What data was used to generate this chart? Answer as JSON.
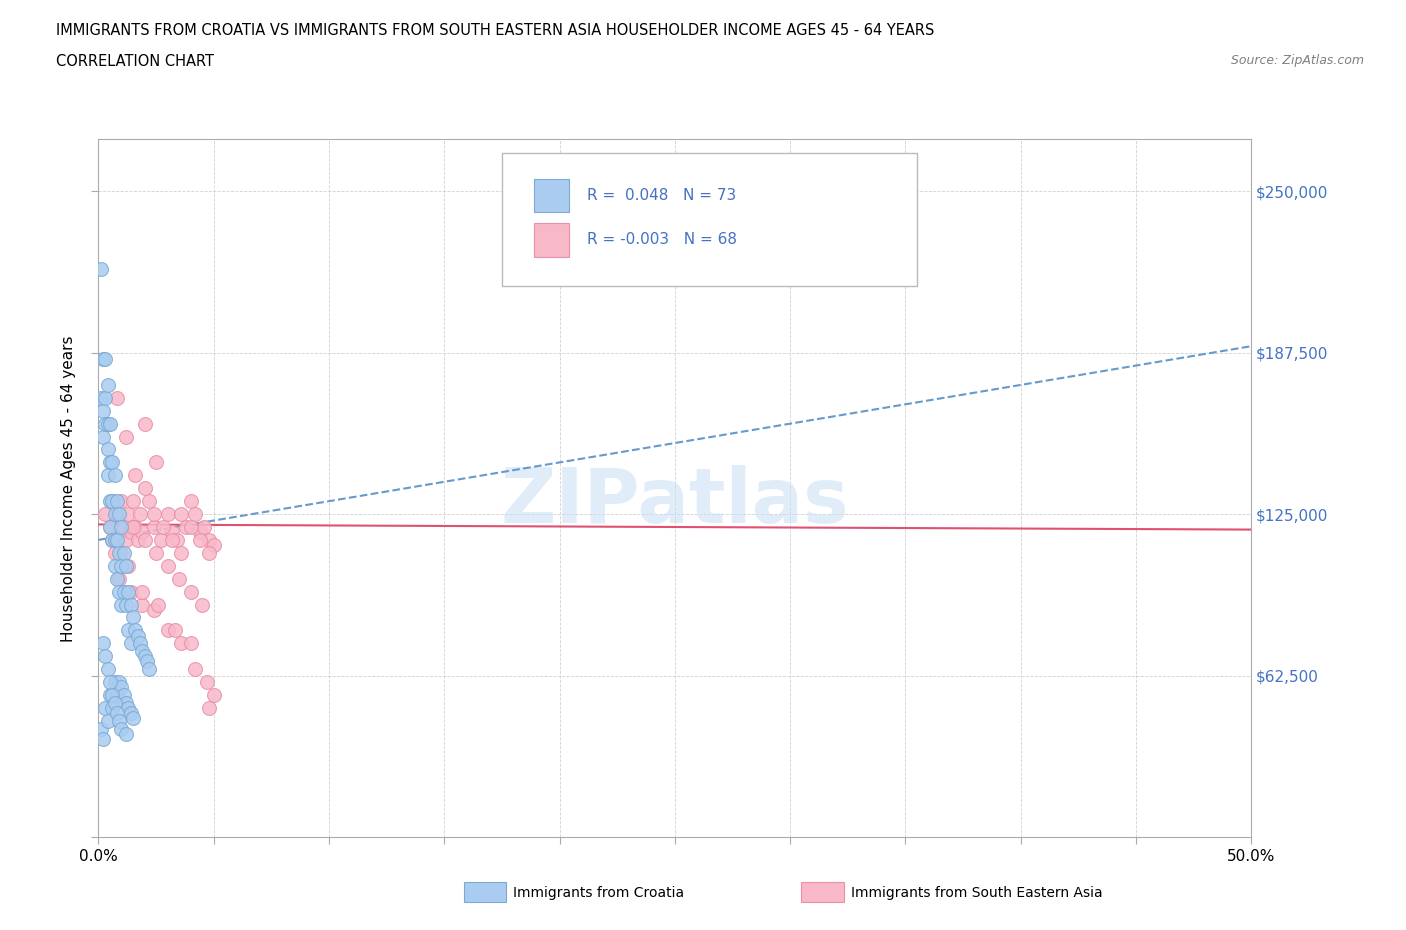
{
  "title_line1": "IMMIGRANTS FROM CROATIA VS IMMIGRANTS FROM SOUTH EASTERN ASIA HOUSEHOLDER INCOME AGES 45 - 64 YEARS",
  "title_line2": "CORRELATION CHART",
  "source_text": "Source: ZipAtlas.com",
  "ylabel": "Householder Income Ages 45 - 64 years",
  "xlim": [
    0.0,
    0.5
  ],
  "ylim": [
    0,
    270000
  ],
  "xticks": [
    0.0,
    0.05,
    0.1,
    0.15,
    0.2,
    0.25,
    0.3,
    0.35,
    0.4,
    0.45,
    0.5
  ],
  "ytick_positions": [
    0,
    62500,
    125000,
    187500,
    250000
  ],
  "ytick_labels": [
    "",
    "$62,500",
    "$125,000",
    "$187,500",
    "$250,000"
  ],
  "croatia_color": "#aaccf0",
  "croatia_edge": "#7aaad4",
  "sea_color": "#f8b8c8",
  "sea_edge": "#e890a8",
  "trend_croatia_color": "#6699cc",
  "trend_sea_color": "#e05070",
  "legend_color": "#4472c4",
  "watermark": "ZIPatlas",
  "croatia_x": [
    0.001,
    0.001,
    0.002,
    0.002,
    0.002,
    0.003,
    0.003,
    0.003,
    0.004,
    0.004,
    0.004,
    0.004,
    0.005,
    0.005,
    0.005,
    0.005,
    0.006,
    0.006,
    0.006,
    0.007,
    0.007,
    0.007,
    0.007,
    0.008,
    0.008,
    0.008,
    0.009,
    0.009,
    0.009,
    0.01,
    0.01,
    0.01,
    0.011,
    0.011,
    0.012,
    0.012,
    0.013,
    0.013,
    0.014,
    0.014,
    0.015,
    0.016,
    0.017,
    0.018,
    0.019,
    0.02,
    0.021,
    0.022,
    0.001,
    0.002,
    0.003,
    0.004,
    0.005,
    0.006,
    0.007,
    0.008,
    0.009,
    0.01,
    0.011,
    0.012,
    0.013,
    0.014,
    0.015,
    0.002,
    0.003,
    0.004,
    0.005,
    0.006,
    0.007,
    0.008,
    0.009,
    0.01,
    0.012
  ],
  "croatia_y": [
    220000,
    170000,
    185000,
    165000,
    155000,
    185000,
    170000,
    160000,
    175000,
    160000,
    150000,
    140000,
    160000,
    145000,
    130000,
    120000,
    145000,
    130000,
    115000,
    140000,
    125000,
    115000,
    105000,
    130000,
    115000,
    100000,
    125000,
    110000,
    95000,
    120000,
    105000,
    90000,
    110000,
    95000,
    105000,
    90000,
    95000,
    80000,
    90000,
    75000,
    85000,
    80000,
    78000,
    75000,
    72000,
    70000,
    68000,
    65000,
    42000,
    38000,
    50000,
    45000,
    55000,
    50000,
    60000,
    55000,
    60000,
    58000,
    55000,
    52000,
    50000,
    48000,
    46000,
    75000,
    70000,
    65000,
    60000,
    55000,
    52000,
    48000,
    45000,
    42000,
    40000
  ],
  "sea_x": [
    0.003,
    0.005,
    0.006,
    0.007,
    0.008,
    0.009,
    0.01,
    0.011,
    0.012,
    0.013,
    0.014,
    0.015,
    0.016,
    0.017,
    0.018,
    0.019,
    0.02,
    0.022,
    0.024,
    0.025,
    0.027,
    0.03,
    0.032,
    0.034,
    0.036,
    0.038,
    0.04,
    0.042,
    0.044,
    0.046,
    0.048,
    0.05,
    0.008,
    0.012,
    0.016,
    0.02,
    0.024,
    0.028,
    0.032,
    0.036,
    0.04,
    0.044,
    0.048,
    0.006,
    0.01,
    0.015,
    0.02,
    0.025,
    0.03,
    0.035,
    0.04,
    0.045,
    0.05,
    0.009,
    0.014,
    0.019,
    0.024,
    0.03,
    0.036,
    0.042,
    0.048,
    0.007,
    0.013,
    0.019,
    0.026,
    0.033,
    0.04,
    0.047
  ],
  "sea_y": [
    125000,
    120000,
    130000,
    115000,
    125000,
    118000,
    130000,
    120000,
    115000,
    125000,
    118000,
    130000,
    120000,
    115000,
    125000,
    118000,
    160000,
    130000,
    120000,
    145000,
    115000,
    125000,
    118000,
    115000,
    125000,
    120000,
    130000,
    125000,
    118000,
    120000,
    115000,
    113000,
    170000,
    155000,
    140000,
    135000,
    125000,
    120000,
    115000,
    110000,
    120000,
    115000,
    110000,
    115000,
    110000,
    120000,
    115000,
    110000,
    105000,
    100000,
    95000,
    90000,
    55000,
    100000,
    95000,
    90000,
    88000,
    80000,
    75000,
    65000,
    50000,
    110000,
    105000,
    95000,
    90000,
    80000,
    75000,
    60000
  ]
}
